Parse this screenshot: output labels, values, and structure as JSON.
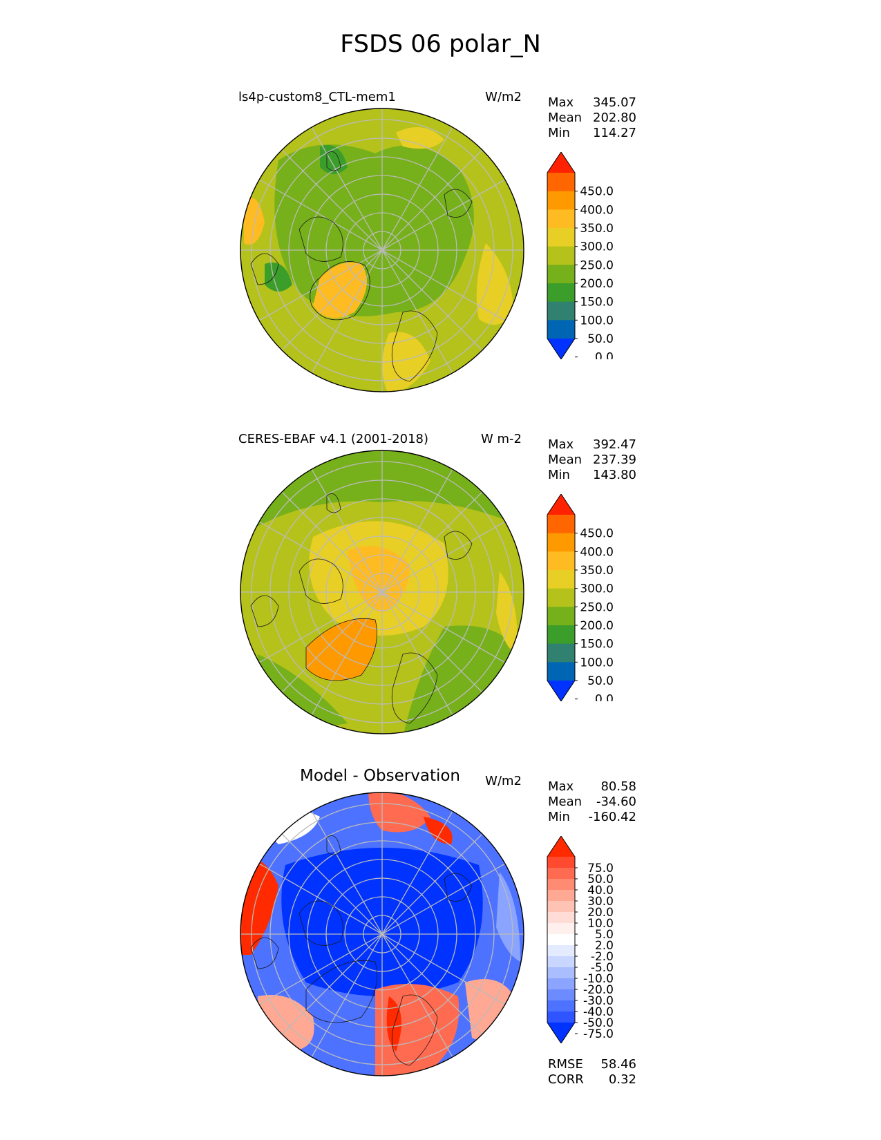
{
  "title": "FSDS 06 polar_N",
  "panels": [
    {
      "left_title": "ls4p-custom8_CTL-mem1",
      "units": "W/m2",
      "stats": {
        "max_label": "Max",
        "max": "345.07",
        "mean_label": "Mean",
        "mean": "202.80",
        "min_label": "Min",
        "min": "114.27"
      },
      "colorbar_type": "abs"
    },
    {
      "left_title": "CERES-EBAF v4.1 (2001-2018)",
      "units": "W m-2",
      "stats": {
        "max_label": "Max",
        "max": "392.47",
        "mean_label": "Mean",
        "mean": "237.39",
        "min_label": "Min",
        "min": "143.80"
      },
      "colorbar_type": "abs"
    },
    {
      "center_title": "Model - Observation",
      "units": "W/m2",
      "stats": {
        "max_label": "Max",
        "max": "80.58",
        "mean_label": "Mean",
        "mean": "-34.60",
        "min_label": "Min",
        "min": "-160.42"
      },
      "colorbar_type": "diff"
    }
  ],
  "diff_metrics": {
    "rmse_label": "RMSE",
    "rmse": "58.46",
    "corr_label": "CORR",
    "corr": "0.32"
  },
  "colorbars": {
    "abs": {
      "tick_labels": [
        "450.0",
        "400.0",
        "350.0",
        "300.0",
        "250.0",
        "200.0",
        "150.0",
        "100.0",
        "50.0",
        "0.0"
      ],
      "colors": [
        "#ff2200",
        "#ff6600",
        "#ff9900",
        "#ffbb22",
        "#e8cf25",
        "#b5c21b",
        "#76b01a",
        "#3c9e2a",
        "#318170",
        "#0066b3",
        "#0033ff"
      ]
    },
    "diff": {
      "tick_labels": [
        "75.0",
        "50.0",
        "40.0",
        "30.0",
        "20.0",
        "10.0",
        "5.0",
        "2.0",
        "-2.0",
        "-5.0",
        "-10.0",
        "-20.0",
        "-30.0",
        "-40.0",
        "-50.0",
        "-75.0"
      ],
      "colors": [
        "#ff2a00",
        "#ff4a30",
        "#ff6b50",
        "#ff8c72",
        "#ffa893",
        "#ffc3b6",
        "#ffdcd5",
        "#fff0ee",
        "#ffffff",
        "#e4ebff",
        "#c9d6ff",
        "#a9bdff",
        "#8aa4ff",
        "#6c8bff",
        "#4d72ff",
        "#2e55ff",
        "#0033ff"
      ]
    }
  },
  "map_colors": {
    "panel1": {
      "base": "#76b01a",
      "mid": "#b5c21b",
      "hi": "#e8cf25",
      "hot": "#ffbb22",
      "low": "#3c9e2a"
    },
    "panel2": {
      "base": "#b5c21b",
      "mid": "#76b01a",
      "hi": "#e8cf25",
      "hot": "#ffbb22",
      "hotter": "#ff9900"
    },
    "panel3": {
      "neg": "#0033ff",
      "neg2": "#4d72ff",
      "neg3": "#8aa4ff",
      "pos": "#ff6b50",
      "pos2": "#ffa893",
      "pos3": "#ff2a00",
      "neutral": "#ffffff"
    }
  }
}
